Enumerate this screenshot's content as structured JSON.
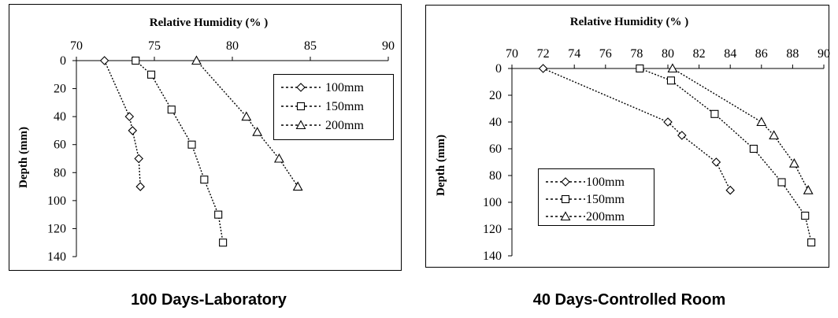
{
  "chart_data": [
    {
      "type": "line",
      "title": "",
      "xlabel": "Relative Humidity (% )",
      "ylabel": "Depth (mm)",
      "xlim": [
        70,
        90
      ],
      "ylim": [
        0,
        140
      ],
      "y_inverted": true,
      "x_axis_position": "top",
      "xticks": [
        "70",
        "75",
        "80",
        "85",
        "90"
      ],
      "yticks": [
        "0",
        "20",
        "40",
        "60",
        "80",
        "100",
        "120",
        "140"
      ],
      "legend_position": "top-right",
      "series": [
        {
          "name": "100mm",
          "marker": "diamond",
          "x": [
            71.8,
            73.4,
            73.6,
            74.0,
            74.1
          ],
          "y": [
            0,
            40,
            50,
            70,
            90
          ]
        },
        {
          "name": "150mm",
          "marker": "square",
          "x": [
            73.8,
            74.8,
            76.1,
            77.4,
            78.2,
            79.1,
            79.4
          ],
          "y": [
            0,
            10,
            35,
            60,
            85,
            110,
            130
          ]
        },
        {
          "name": "200mm",
          "marker": "triangle",
          "x": [
            77.7,
            80.9,
            81.6,
            83.0,
            84.2
          ],
          "y": [
            0,
            40,
            51,
            70,
            90
          ]
        }
      ],
      "caption": "100 Days-Laboratory"
    },
    {
      "type": "line",
      "title": "",
      "xlabel": "Relative Humidity (% )",
      "ylabel": "Depth (mm)",
      "xlim": [
        70,
        90
      ],
      "ylim": [
        0,
        140
      ],
      "y_inverted": true,
      "x_axis_position": "top",
      "xticks": [
        "70",
        "72",
        "74",
        "76",
        "78",
        "80",
        "82",
        "84",
        "86",
        "88",
        "90"
      ],
      "yticks": [
        "0",
        "20",
        "40",
        "60",
        "80",
        "100",
        "120",
        "140"
      ],
      "legend_position": "bottom-left",
      "series": [
        {
          "name": "100mm",
          "marker": "diamond",
          "x": [
            72.0,
            80.0,
            80.9,
            83.1,
            84.0
          ],
          "y": [
            0,
            40,
            50,
            70,
            91
          ]
        },
        {
          "name": "150mm",
          "marker": "square",
          "x": [
            78.2,
            80.2,
            83.0,
            85.5,
            87.3,
            88.8,
            89.2
          ],
          "y": [
            0,
            9,
            34,
            60,
            85,
            110,
            130
          ]
        },
        {
          "name": "200mm",
          "marker": "triangle",
          "x": [
            80.3,
            86.0,
            86.8,
            88.1,
            89.0
          ],
          "y": [
            0,
            40,
            50,
            71,
            91
          ]
        }
      ],
      "caption": "40 Days-Controlled Room"
    }
  ]
}
